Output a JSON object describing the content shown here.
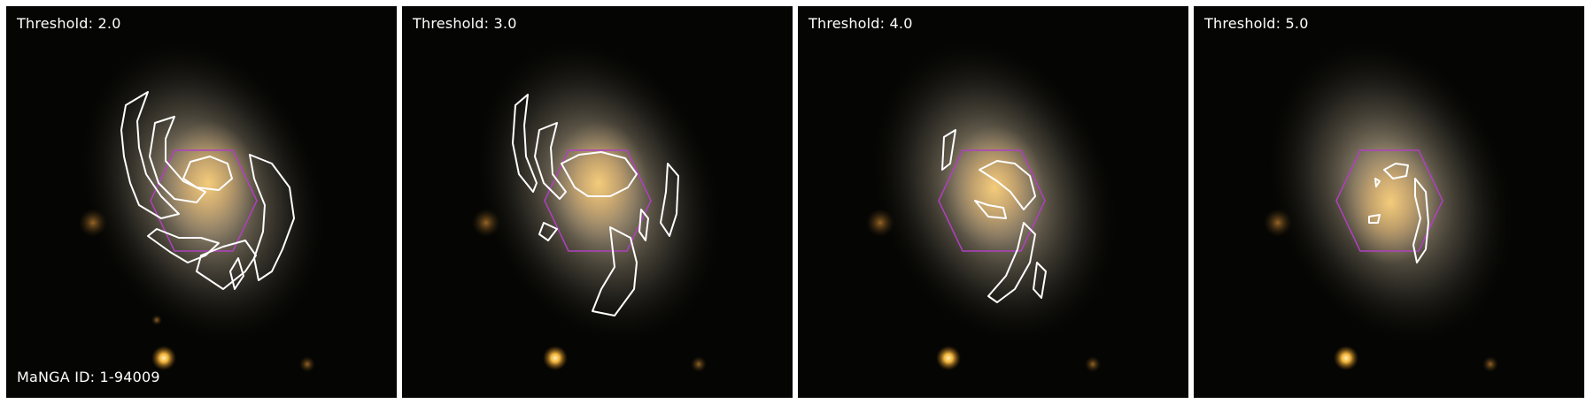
{
  "panels": [
    {
      "threshold_label": "Threshold: 2.0",
      "threshold": 2.0
    },
    {
      "threshold_label": "Threshold: 3.0",
      "threshold": 3.0
    },
    {
      "threshold_label": "Threshold: 4.0",
      "threshold": 4.0
    },
    {
      "threshold_label": "Threshold: 5.0",
      "threshold": 5.0
    }
  ],
  "manga_label": "MaNGA ID: 1-94009",
  "colors": {
    "background": "#050503",
    "galaxy_core": "#f0c070",
    "contour": "#ffffff",
    "ifu_hexagon": "#b040c0",
    "label_text": "#ffffff",
    "divider": "#ffffff"
  },
  "icons": {
    "contour": "contour-line",
    "hexagon": "ifu-hexagon"
  }
}
